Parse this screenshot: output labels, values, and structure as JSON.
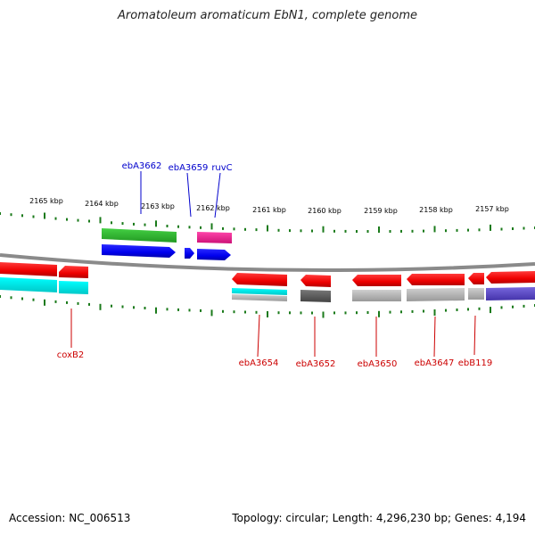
{
  "title": "Aromatoleum aromaticum EbN1, complete genome",
  "footer": {
    "accession": "Accession: NC_006513",
    "info": "Topology: circular; Length: 4,296,230 bp; Genes: 4,194"
  },
  "ticks": [
    "2165 kbp",
    "2164 kbp",
    "2163 kbp",
    "2162 kbp",
    "2161 kbp",
    "2160 kbp",
    "2159 kbp",
    "2158 kbp",
    "2157 kbp"
  ],
  "labels_top": [
    "ebA3662",
    "ebA3659",
    "ruvC"
  ],
  "labels_bottom": [
    "coxB2",
    "ebA3654",
    "ebA3652",
    "ebA3650",
    "ebA3647",
    "ebB119"
  ],
  "colors": {
    "backbone": "#8a8a8a",
    "tick": "#1a7a1a",
    "cds": "#ee0000",
    "cds_blue": "#0000ee",
    "cyan": "#00e5e5",
    "gray": "#aaaaaa",
    "dark_gray": "#555555",
    "green": "#33bb33",
    "pink": "#ee2299",
    "purple": "#6655cc",
    "label_blue": "#0000cc",
    "label_red": "#cc0000"
  }
}
